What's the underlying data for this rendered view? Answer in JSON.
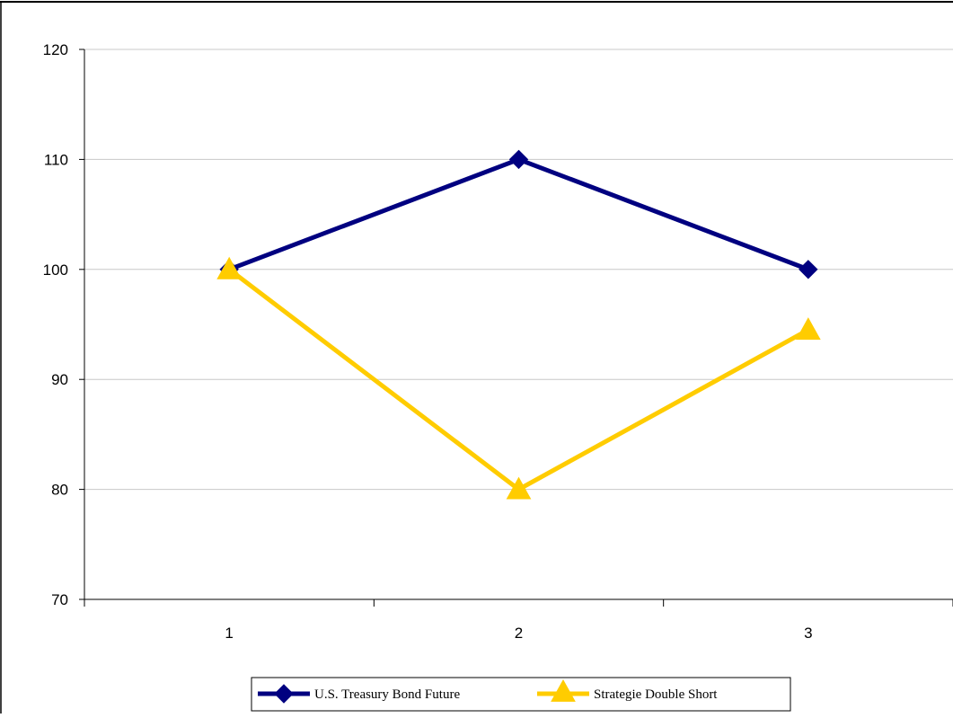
{
  "chart_data": {
    "type": "line",
    "title": "",
    "xlabel": "",
    "ylabel": "",
    "categories": [
      "1",
      "2",
      "3"
    ],
    "x": [
      1,
      2,
      3
    ],
    "ylim": [
      70,
      120
    ],
    "yticks": [
      70,
      80,
      90,
      100,
      110,
      120
    ],
    "grid": "horizontal",
    "legend_position": "bottom",
    "series": [
      {
        "name": "U.S. Treasury Bond Future",
        "values": [
          100,
          110,
          100
        ],
        "color": "#000080",
        "marker": "diamond"
      },
      {
        "name": "Strategie Double Short",
        "values": [
          100,
          80,
          94.5
        ],
        "color": "#FFCC00",
        "marker": "triangle"
      }
    ]
  }
}
